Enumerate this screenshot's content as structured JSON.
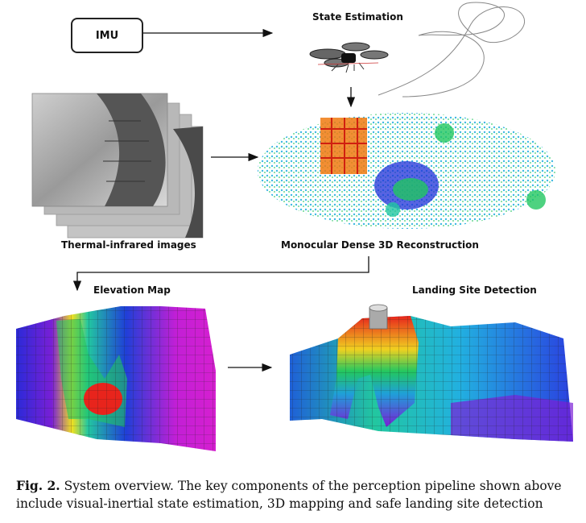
{
  "nodes": {
    "imu": "IMU",
    "state_estimation": "State Estimation",
    "thermal_images": "Thermal-infrared images",
    "reconstruction": "Monocular Dense 3D Reconstruction",
    "elevation_map": "Elevation Map",
    "landing_site": "Landing Site Detection"
  },
  "caption": {
    "label": "Fig. 2.",
    "text": "System overview. The key components of the perception pipeline shown above include visual-inertial state estimation, 3D mapping and safe landing site detection"
  },
  "colors": {
    "arrow": "#111111",
    "low": "#7a1fd6",
    "mid": "#22c7a0",
    "high": "#e8241c"
  }
}
